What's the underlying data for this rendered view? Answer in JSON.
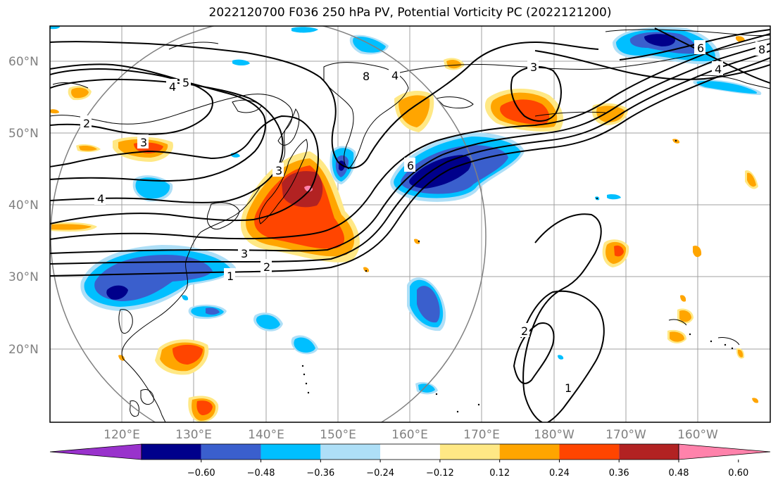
{
  "title": "2022120700 F036 250 hPa PV, Potential Vorticity PC (2022121200)",
  "lat_labels": [
    "60°N",
    "50°N",
    "40°N",
    "30°N",
    "20°N"
  ],
  "lon_labels": [
    "120°E",
    "130°E",
    "140°E",
    "150°E",
    "160°E",
    "170°E",
    "180°W",
    "170°W",
    "160°W"
  ],
  "colorbar": {
    "ticks": [
      "−0.60",
      "−0.48",
      "−0.36",
      "−0.24",
      "−0.12",
      "0.12",
      "0.24",
      "0.36",
      "0.48",
      "0.60"
    ],
    "colors": [
      "#9932CC",
      "#00008B",
      "#3A5FCD",
      "#00BFFF",
      "#AEDFF7",
      "#FFFFFF",
      "#FFE885",
      "#FFA500",
      "#FF4500",
      "#B22222",
      "#FF82AB"
    ]
  },
  "contour_labels": [
    "5",
    "4",
    "2",
    "3",
    "3",
    "4",
    "3",
    "2",
    "1",
    "8",
    "4",
    "6",
    "3",
    "6",
    "4",
    "8",
    "2",
    "1"
  ]
}
